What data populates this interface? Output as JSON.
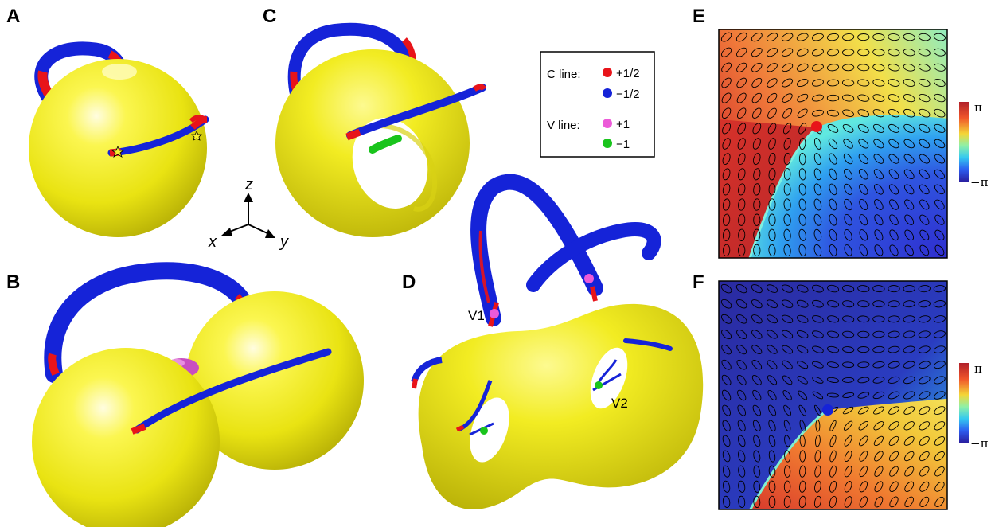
{
  "figure": {
    "panel_labels": [
      "A",
      "B",
      "C",
      "D",
      "E",
      "F"
    ],
    "axes": {
      "x": "x",
      "y": "y",
      "z": "z"
    },
    "legend": {
      "c_line_title": "C line:",
      "v_line_title": "V line:",
      "c_plus": "+1/2",
      "c_minus": "−1/2",
      "v_plus": "+1",
      "v_minus": "−1",
      "colors": {
        "c_plus": "#e8141a",
        "c_minus": "#1523d8",
        "v_plus": "#ec5ad8",
        "v_minus": "#19c41c"
      }
    },
    "vortex_labels": {
      "v1": "V1",
      "v2": "V2"
    },
    "colorbar": {
      "top": "π",
      "bottom": "−π"
    },
    "surface_color": "#f2ee1c"
  }
}
